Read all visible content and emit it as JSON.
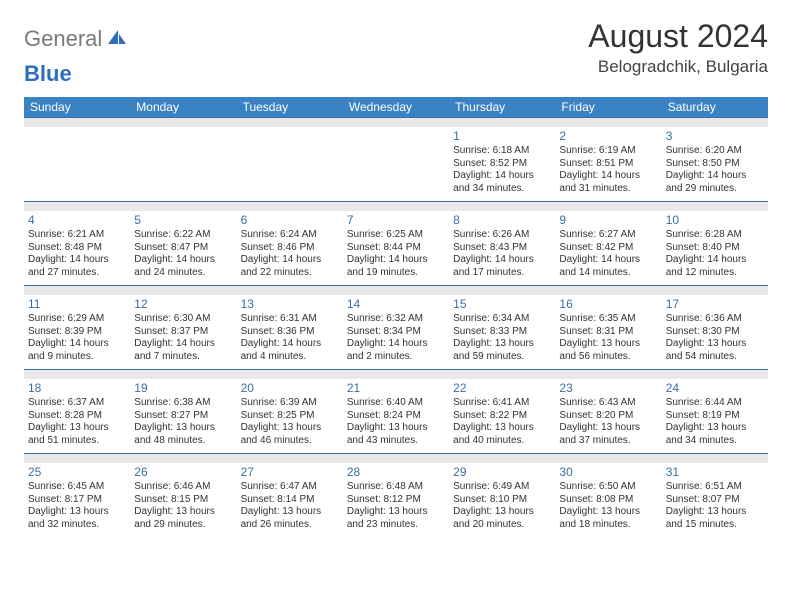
{
  "logo": {
    "gray": "General",
    "blue": "Blue"
  },
  "title": "August 2024",
  "location": "Belogradchik, Bulgaria",
  "colors": {
    "header_bg": "#3b82c4",
    "sep_bg": "#e9e9e9",
    "daynum": "#3b6fa0",
    "text": "#333333"
  },
  "day_headers": [
    "Sunday",
    "Monday",
    "Tuesday",
    "Wednesday",
    "Thursday",
    "Friday",
    "Saturday"
  ],
  "weeks": [
    [
      null,
      null,
      null,
      null,
      {
        "n": "1",
        "sr": "Sunrise: 6:18 AM",
        "ss": "Sunset: 8:52 PM",
        "d1": "Daylight: 14 hours",
        "d2": "and 34 minutes."
      },
      {
        "n": "2",
        "sr": "Sunrise: 6:19 AM",
        "ss": "Sunset: 8:51 PM",
        "d1": "Daylight: 14 hours",
        "d2": "and 31 minutes."
      },
      {
        "n": "3",
        "sr": "Sunrise: 6:20 AM",
        "ss": "Sunset: 8:50 PM",
        "d1": "Daylight: 14 hours",
        "d2": "and 29 minutes."
      }
    ],
    [
      {
        "n": "4",
        "sr": "Sunrise: 6:21 AM",
        "ss": "Sunset: 8:48 PM",
        "d1": "Daylight: 14 hours",
        "d2": "and 27 minutes."
      },
      {
        "n": "5",
        "sr": "Sunrise: 6:22 AM",
        "ss": "Sunset: 8:47 PM",
        "d1": "Daylight: 14 hours",
        "d2": "and 24 minutes."
      },
      {
        "n": "6",
        "sr": "Sunrise: 6:24 AM",
        "ss": "Sunset: 8:46 PM",
        "d1": "Daylight: 14 hours",
        "d2": "and 22 minutes."
      },
      {
        "n": "7",
        "sr": "Sunrise: 6:25 AM",
        "ss": "Sunset: 8:44 PM",
        "d1": "Daylight: 14 hours",
        "d2": "and 19 minutes."
      },
      {
        "n": "8",
        "sr": "Sunrise: 6:26 AM",
        "ss": "Sunset: 8:43 PM",
        "d1": "Daylight: 14 hours",
        "d2": "and 17 minutes."
      },
      {
        "n": "9",
        "sr": "Sunrise: 6:27 AM",
        "ss": "Sunset: 8:42 PM",
        "d1": "Daylight: 14 hours",
        "d2": "and 14 minutes."
      },
      {
        "n": "10",
        "sr": "Sunrise: 6:28 AM",
        "ss": "Sunset: 8:40 PM",
        "d1": "Daylight: 14 hours",
        "d2": "and 12 minutes."
      }
    ],
    [
      {
        "n": "11",
        "sr": "Sunrise: 6:29 AM",
        "ss": "Sunset: 8:39 PM",
        "d1": "Daylight: 14 hours",
        "d2": "and 9 minutes."
      },
      {
        "n": "12",
        "sr": "Sunrise: 6:30 AM",
        "ss": "Sunset: 8:37 PM",
        "d1": "Daylight: 14 hours",
        "d2": "and 7 minutes."
      },
      {
        "n": "13",
        "sr": "Sunrise: 6:31 AM",
        "ss": "Sunset: 8:36 PM",
        "d1": "Daylight: 14 hours",
        "d2": "and 4 minutes."
      },
      {
        "n": "14",
        "sr": "Sunrise: 6:32 AM",
        "ss": "Sunset: 8:34 PM",
        "d1": "Daylight: 14 hours",
        "d2": "and 2 minutes."
      },
      {
        "n": "15",
        "sr": "Sunrise: 6:34 AM",
        "ss": "Sunset: 8:33 PM",
        "d1": "Daylight: 13 hours",
        "d2": "and 59 minutes."
      },
      {
        "n": "16",
        "sr": "Sunrise: 6:35 AM",
        "ss": "Sunset: 8:31 PM",
        "d1": "Daylight: 13 hours",
        "d2": "and 56 minutes."
      },
      {
        "n": "17",
        "sr": "Sunrise: 6:36 AM",
        "ss": "Sunset: 8:30 PM",
        "d1": "Daylight: 13 hours",
        "d2": "and 54 minutes."
      }
    ],
    [
      {
        "n": "18",
        "sr": "Sunrise: 6:37 AM",
        "ss": "Sunset: 8:28 PM",
        "d1": "Daylight: 13 hours",
        "d2": "and 51 minutes."
      },
      {
        "n": "19",
        "sr": "Sunrise: 6:38 AM",
        "ss": "Sunset: 8:27 PM",
        "d1": "Daylight: 13 hours",
        "d2": "and 48 minutes."
      },
      {
        "n": "20",
        "sr": "Sunrise: 6:39 AM",
        "ss": "Sunset: 8:25 PM",
        "d1": "Daylight: 13 hours",
        "d2": "and 46 minutes."
      },
      {
        "n": "21",
        "sr": "Sunrise: 6:40 AM",
        "ss": "Sunset: 8:24 PM",
        "d1": "Daylight: 13 hours",
        "d2": "and 43 minutes."
      },
      {
        "n": "22",
        "sr": "Sunrise: 6:41 AM",
        "ss": "Sunset: 8:22 PM",
        "d1": "Daylight: 13 hours",
        "d2": "and 40 minutes."
      },
      {
        "n": "23",
        "sr": "Sunrise: 6:43 AM",
        "ss": "Sunset: 8:20 PM",
        "d1": "Daylight: 13 hours",
        "d2": "and 37 minutes."
      },
      {
        "n": "24",
        "sr": "Sunrise: 6:44 AM",
        "ss": "Sunset: 8:19 PM",
        "d1": "Daylight: 13 hours",
        "d2": "and 34 minutes."
      }
    ],
    [
      {
        "n": "25",
        "sr": "Sunrise: 6:45 AM",
        "ss": "Sunset: 8:17 PM",
        "d1": "Daylight: 13 hours",
        "d2": "and 32 minutes."
      },
      {
        "n": "26",
        "sr": "Sunrise: 6:46 AM",
        "ss": "Sunset: 8:15 PM",
        "d1": "Daylight: 13 hours",
        "d2": "and 29 minutes."
      },
      {
        "n": "27",
        "sr": "Sunrise: 6:47 AM",
        "ss": "Sunset: 8:14 PM",
        "d1": "Daylight: 13 hours",
        "d2": "and 26 minutes."
      },
      {
        "n": "28",
        "sr": "Sunrise: 6:48 AM",
        "ss": "Sunset: 8:12 PM",
        "d1": "Daylight: 13 hours",
        "d2": "and 23 minutes."
      },
      {
        "n": "29",
        "sr": "Sunrise: 6:49 AM",
        "ss": "Sunset: 8:10 PM",
        "d1": "Daylight: 13 hours",
        "d2": "and 20 minutes."
      },
      {
        "n": "30",
        "sr": "Sunrise: 6:50 AM",
        "ss": "Sunset: 8:08 PM",
        "d1": "Daylight: 13 hours",
        "d2": "and 18 minutes."
      },
      {
        "n": "31",
        "sr": "Sunrise: 6:51 AM",
        "ss": "Sunset: 8:07 PM",
        "d1": "Daylight: 13 hours",
        "d2": "and 15 minutes."
      }
    ]
  ]
}
